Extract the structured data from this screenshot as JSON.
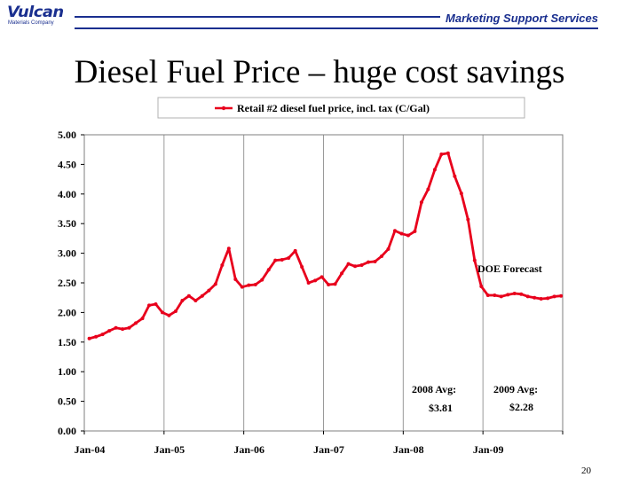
{
  "header": {
    "logo_text": "Vulcan",
    "logo_sub": "Materials Company",
    "right_text": "Marketing Support Services"
  },
  "slide": {
    "title": "Diesel Fuel Price – huge cost savings",
    "page_number": "20"
  },
  "colors": {
    "series": "#e8001c",
    "brand": "#1a2f8f",
    "grid": "#9a9a9a"
  },
  "chart_data": {
    "type": "line",
    "legend": "Retail #2 diesel fuel price, incl. tax (C/Gal)",
    "legend_position": "top",
    "grid": "vertical",
    "ylim": [
      0,
      5
    ],
    "yticks": [
      "0.00",
      "0.50",
      "1.00",
      "1.50",
      "2.00",
      "2.50",
      "3.00",
      "3.50",
      "4.00",
      "4.50",
      "5.00"
    ],
    "xtick_labels": [
      "Jan-04",
      "Jan-05",
      "Jan-06",
      "Jan-07",
      "Jan-08",
      "Jan-09"
    ],
    "xlim": [
      "Jan-04",
      "Dec-09"
    ],
    "series": [
      {
        "name": "Retail #2 diesel fuel price, incl. tax (C/Gal)",
        "start": "Jan-04",
        "frequency": "monthly",
        "values": [
          1.56,
          1.59,
          1.63,
          1.69,
          1.74,
          1.72,
          1.74,
          1.82,
          1.9,
          2.12,
          2.14,
          2.0,
          1.95,
          2.02,
          2.2,
          2.28,
          2.2,
          2.28,
          2.37,
          2.48,
          2.8,
          3.08,
          2.56,
          2.43,
          2.46,
          2.47,
          2.55,
          2.72,
          2.88,
          2.89,
          2.92,
          3.04,
          2.77,
          2.5,
          2.54,
          2.6,
          2.47,
          2.48,
          2.66,
          2.82,
          2.78,
          2.8,
          2.85,
          2.86,
          2.95,
          3.07,
          3.38,
          3.33,
          3.3,
          3.37,
          3.86,
          4.08,
          4.41,
          4.67,
          4.69,
          4.3,
          4.01,
          3.57,
          2.88,
          2.44,
          2.29,
          2.29,
          2.27,
          2.3,
          2.32,
          2.31,
          2.27,
          2.25,
          2.23,
          2.24,
          2.27,
          2.28
        ]
      }
    ],
    "annotations": [
      {
        "id": "doe",
        "text": "DOE Forecast"
      },
      {
        "id": "avg2008_label",
        "text": "2008 Avg:"
      },
      {
        "id": "avg2008_value",
        "text": "$3.81"
      },
      {
        "id": "avg2009_label",
        "text": "2009 Avg:"
      },
      {
        "id": "avg2009_value",
        "text": "$2.28"
      }
    ]
  }
}
